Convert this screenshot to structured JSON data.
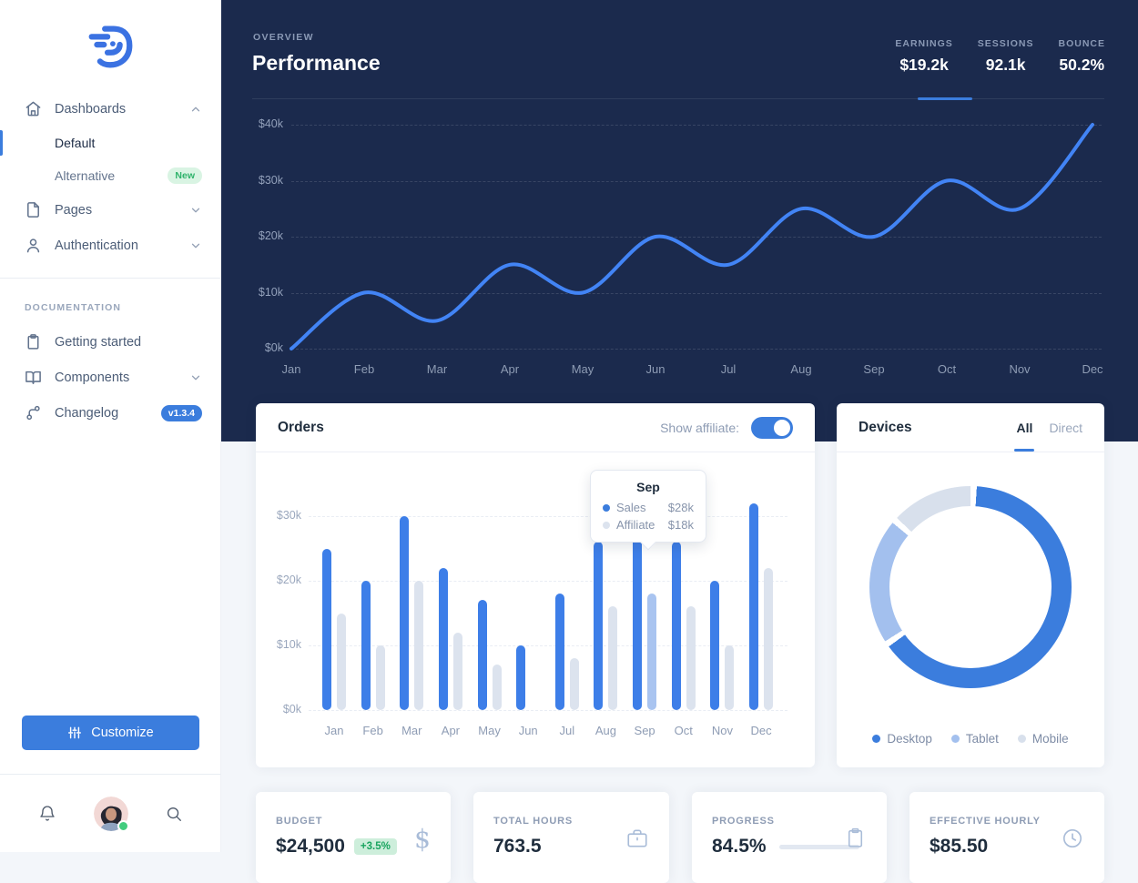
{
  "sidebar": {
    "dashboards_label": "Dashboards",
    "default_label": "Default",
    "alternative_label": "Alternative",
    "alternative_badge": "New",
    "pages_label": "Pages",
    "authentication_label": "Authentication",
    "section_label": "DOCUMENTATION",
    "getting_started_label": "Getting started",
    "components_label": "Components",
    "changelog_label": "Changelog",
    "changelog_badge": "v1.3.4",
    "customize_label": "Customize"
  },
  "header": {
    "eyebrow": "OVERVIEW",
    "title": "Performance",
    "stats": [
      {
        "label": "EARNINGS",
        "value": "$19.2k",
        "active": true
      },
      {
        "label": "SESSIONS",
        "value": "92.1k",
        "active": false
      },
      {
        "label": "BOUNCE",
        "value": "50.2%",
        "active": false
      }
    ]
  },
  "orders": {
    "title": "Orders",
    "toggle_label": "Show affiliate:",
    "toggle_on": true,
    "tooltip": {
      "title": "Sep",
      "rows": [
        {
          "label": "Sales",
          "value": "$28k"
        },
        {
          "label": "Affiliate",
          "value": "$18k"
        }
      ]
    }
  },
  "devices": {
    "title": "Devices",
    "tabs": [
      {
        "label": "All",
        "active": true
      },
      {
        "label": "Direct",
        "active": false
      }
    ],
    "legend": [
      {
        "label": "Desktop",
        "color": "#3B7DDD"
      },
      {
        "label": "Tablet",
        "color": "#A3C0EE"
      },
      {
        "label": "Mobile",
        "color": "#D8E0EC"
      }
    ]
  },
  "stat_cards": [
    {
      "label": "BUDGET",
      "value": "$24,500",
      "badge": "+3.5%",
      "icon": "dollar-icon"
    },
    {
      "label": "TOTAL HOURS",
      "value": "763.5",
      "icon": "briefcase-icon"
    },
    {
      "label": "PROGRESS",
      "value": "84.5%",
      "icon": "clipboard-icon",
      "progress_percent": 84.5
    },
    {
      "label": "EFFECTIVE HOURLY",
      "value": "$85.50",
      "icon": "clock-icon"
    }
  ],
  "colors": {
    "accent": "#3B7DDD",
    "navy": "#1B2A4D",
    "line": "#4284F5",
    "bar_sales": "#3D7EE8",
    "bar_affiliate": "#DCE3EE",
    "bar_affiliate_highlight": "#A9C4F0"
  },
  "chart_data": [
    {
      "type": "line",
      "title": "Performance monthly earnings",
      "x": [
        "Jan",
        "Feb",
        "Mar",
        "Apr",
        "May",
        "Jun",
        "Jul",
        "Aug",
        "Sep",
        "Oct",
        "Nov",
        "Dec"
      ],
      "series": [
        {
          "name": "Earnings",
          "values": [
            0,
            10,
            5,
            15,
            10,
            20,
            15,
            25,
            20,
            30,
            25,
            40
          ]
        }
      ],
      "yticks": [
        "$0k",
        "$10k",
        "$20k",
        "$30k",
        "$40k"
      ],
      "ylim": [
        0,
        40
      ],
      "unit": "$k",
      "grid": "dotted-horizontal",
      "legend_position": "none"
    },
    {
      "type": "bar",
      "title": "Orders",
      "categories": [
        "Jan",
        "Feb",
        "Mar",
        "Apr",
        "May",
        "Jun",
        "Jul",
        "Aug",
        "Sep",
        "Oct",
        "Nov",
        "Dec"
      ],
      "series": [
        {
          "name": "Sales",
          "values": [
            25,
            20,
            30,
            22,
            17,
            10,
            18,
            26,
            28,
            26,
            20,
            32
          ]
        },
        {
          "name": "Affiliate",
          "values": [
            15,
            10,
            20,
            12,
            7,
            0,
            8,
            16,
            18,
            16,
            10,
            22
          ]
        }
      ],
      "yticks": [
        "$0k",
        "$10k",
        "$20k",
        "$30k"
      ],
      "ylim": [
        0,
        34
      ],
      "highlighted_category": "Sep",
      "grid": "dotted-horizontal"
    },
    {
      "type": "pie",
      "title": "Devices",
      "labels": [
        "Desktop",
        "Tablet",
        "Mobile"
      ],
      "values": [
        65,
        21,
        14
      ],
      "donut": true,
      "legend_position": "bottom"
    }
  ]
}
